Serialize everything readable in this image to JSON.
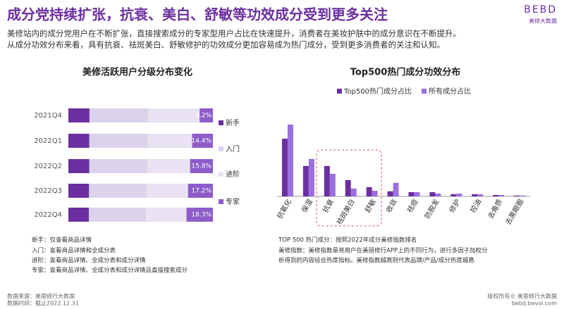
{
  "header": {
    "title": "成分党持续扩张，抗衰、美白、舒敏等功效成分受到更多关注",
    "subtitle": [
      "美修站内的成分党用户在不断扩张，直接搜索成分的专家型用户占比在快速提升，消费者在美妆护肤中的成分意识在不断提升。",
      "从成分功效分布来看，具有抗衰、祛斑美白、舒敏修护的功效成分更加容易成为热门成分，受到更多消费者的关注和认知。"
    ]
  },
  "logo": {
    "mark": "BEBD",
    "text": "美修大数据"
  },
  "chart_data": [
    {
      "type": "bar",
      "orientation": "horizontal",
      "stacked": true,
      "title": "美修活跃用户分级分布变化",
      "categories": [
        "2021Q4",
        "2022Q1",
        "2022Q2",
        "2022Q3",
        "2022Q4"
      ],
      "series": [
        {
          "name": "新手",
          "color": "#6b2fa0",
          "values": [
            14.6,
            14.5,
            14.5,
            14.3,
            14.2
          ]
        },
        {
          "name": "入门",
          "color": "#ddd2ec",
          "values": [
            40.6,
            40.5,
            40.2,
            39.8,
            39.5
          ]
        },
        {
          "name": "进阶",
          "color": "#e9e2f3",
          "values": [
            35.6,
            30.6,
            29.5,
            28.7,
            28.0
          ]
        },
        {
          "name": "专家",
          "color": "#8e5cc9",
          "values": [
            9.2,
            14.4,
            15.8,
            17.2,
            18.3
          ],
          "value_labels": [
            "9.2%",
            "14.4%",
            "15.8%",
            "17.2%",
            "18.3%"
          ]
        }
      ]
    },
    {
      "type": "bar",
      "orientation": "vertical",
      "stacked": false,
      "title": "Top500热门成分功效分布",
      "categories": [
        "抗氧化",
        "保湿",
        "抗衰",
        "祛斑美白",
        "舒敏",
        "收敛",
        "祛痘",
        "防脱发",
        "修护",
        "控油",
        "去角质",
        "去黑眼圈"
      ],
      "series": [
        {
          "name": "Top500热门成分占比",
          "color": "#6b2fa0",
          "values": [
            20.5,
            10.8,
            10.8,
            5.8,
            3.3,
            1.8,
            1.5,
            1.5,
            0.8,
            0.8,
            0.5,
            0.3
          ]
        },
        {
          "name": "所有成分占比",
          "color": "#9b6fe0",
          "values": [
            25.5,
            13.3,
            8,
            2.8,
            2,
            4.8,
            1.5,
            1,
            1,
            0.8,
            0.5,
            0.3
          ]
        }
      ]
    }
  ],
  "notes": {
    "left": [
      "新手：仅查看商品详情",
      "入门：查看商品详情和全成分表",
      "进阶：查看商品详情、全成分表和成分详情",
      "专家：查看商品详情、全成分表和成分详情且直接搜索成分"
    ],
    "right": [
      "TOP 500 热门成分：按照2022年成分美修指数排名",
      "美修指数：美修指数是将用户在美丽修行APP上的不同行为，进行多因子加权分",
      "析得到的内容综合热度指标。美修指数越高则代表品牌/产品/成分热度越高"
    ]
  },
  "footer": {
    "left": [
      "数据来源：美丽修行大数据",
      "数据时间：截止2022.12.31"
    ],
    "right": [
      "版权所有© 美丽修行大数据",
      "bebd.bevol.com"
    ]
  }
}
